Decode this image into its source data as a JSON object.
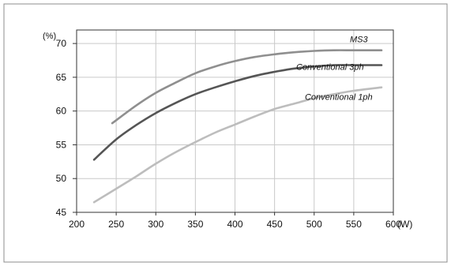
{
  "chart_data": {
    "type": "line",
    "title": "",
    "xlabel": "",
    "ylabel": "",
    "x_unit": "(W)",
    "y_unit": "(%)",
    "xlim": [
      200,
      600
    ],
    "ylim": [
      45,
      72
    ],
    "xticks": [
      "200",
      "250",
      "300",
      "350",
      "400",
      "450",
      "500",
      "550",
      "600"
    ],
    "yticks": [
      "45",
      "50",
      "55",
      "60",
      "65",
      "70"
    ],
    "grid": true,
    "legend": "inline labels at right end of curves",
    "series": [
      {
        "name": "MS3",
        "color": "#8f8f8f",
        "x": [
          245,
          275,
          300,
          325,
          350,
          375,
          400,
          425,
          450,
          475,
          500,
          525,
          550,
          585
        ],
        "y": [
          58.2,
          60.8,
          62.7,
          64.2,
          65.6,
          66.6,
          67.4,
          68.0,
          68.4,
          68.7,
          68.9,
          69.0,
          69.0,
          69.0
        ]
      },
      {
        "name": "Conventional 3ph",
        "color": "#555555",
        "x": [
          222,
          250,
          275,
          300,
          325,
          350,
          375,
          400,
          425,
          450,
          475,
          500,
          525,
          550,
          585
        ],
        "y": [
          52.8,
          55.8,
          57.9,
          59.7,
          61.2,
          62.5,
          63.5,
          64.4,
          65.2,
          65.8,
          66.3,
          66.6,
          66.8,
          66.8,
          66.8
        ]
      },
      {
        "name": "Conventional 1ph",
        "color": "#bdbdbd",
        "x": [
          222,
          250,
          275,
          300,
          325,
          350,
          375,
          400,
          425,
          450,
          475,
          500,
          525,
          550,
          585
        ],
        "y": [
          46.5,
          48.5,
          50.3,
          52.2,
          53.9,
          55.4,
          56.8,
          58.0,
          59.2,
          60.3,
          61.1,
          61.9,
          62.5,
          63.0,
          63.5
        ]
      }
    ]
  }
}
